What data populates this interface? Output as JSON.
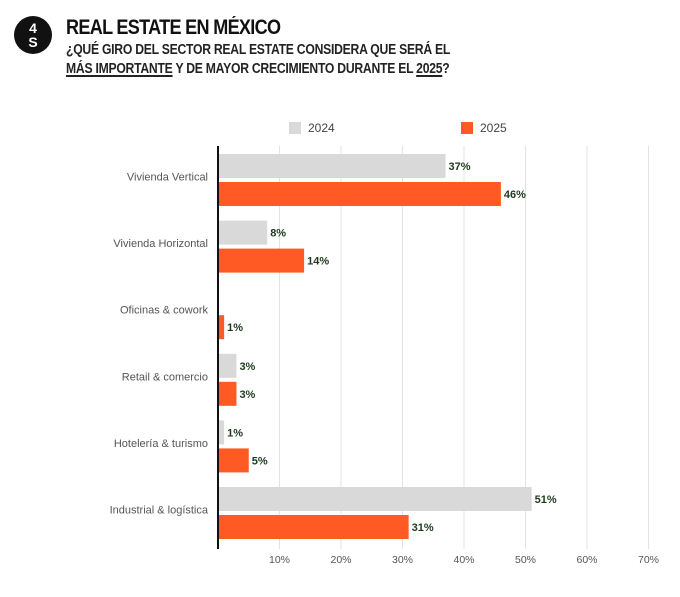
{
  "header": {
    "logo_text": "4S",
    "title": "REAL ESTATE EN MÉXICO",
    "subtitle_line1": "¿QUÉ GIRO DEL SECTOR REAL ESTATE CONSIDERA QUE SERÁ EL",
    "subtitle_line2_emph1": "MÁS IMPORTANTE",
    "subtitle_line2_mid": " Y DE MAYOR CRECIMIENTO DURANTE EL ",
    "subtitle_line2_emph2": "2025",
    "subtitle_line2_end": "?"
  },
  "colors": {
    "series_2024": "#d9d9d9",
    "series_2025": "#ff5a24",
    "axis": "#111111",
    "grid": "#e3e3e3",
    "label_text": "#555555",
    "value_text": "#1e3a1e"
  },
  "chart_data": {
    "type": "bar",
    "orientation": "horizontal",
    "categories": [
      "Vivienda Vertical",
      "Vivienda Horizontal",
      "Oficinas & cowork",
      "Retail & comercio",
      "Hotelería & turismo",
      "Industrial & logística"
    ],
    "series": [
      {
        "name": "2024",
        "values": [
          37,
          8,
          0,
          3,
          1,
          51
        ],
        "labels": [
          "37%",
          "8%",
          "",
          "3%",
          "1%",
          "51%"
        ]
      },
      {
        "name": "2025",
        "values": [
          46,
          14,
          1,
          3,
          5,
          31
        ],
        "labels": [
          "46%",
          "14%",
          "1%",
          "3%",
          "5%",
          "31%"
        ]
      }
    ],
    "xlim": [
      0,
      70
    ],
    "xticks": [
      10,
      20,
      30,
      40,
      50,
      60,
      70
    ],
    "xtick_labels": [
      "10%",
      "20%",
      "30%",
      "40%",
      "50%",
      "60%",
      "70%"
    ],
    "grid": true,
    "legend_position": "top"
  }
}
